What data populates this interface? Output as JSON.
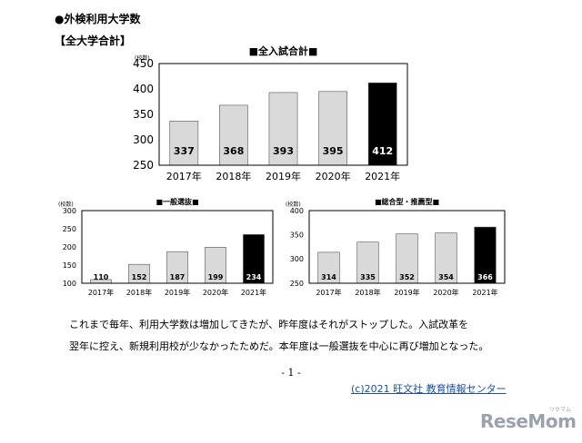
{
  "page": {
    "heading": "●外検利用大学数",
    "subheading": "【全大学合計】",
    "paragraph_line1": "これまで毎年、利用大学数は増加してきたが、昨年度はそれがストップした。入試改革を",
    "paragraph_line2": "翌年に控え、新規利用校が少なかったためだ。本年度は一般選抜を中心に再び増加となった。",
    "page_number": "- 1 -",
    "copyright": "(c)2021 旺文社 教育情報センター",
    "logo_text": "ReseMom",
    "logo_small": "リセマム"
  },
  "chart_data": [
    {
      "type": "bar",
      "title": "■全入試合計■",
      "unit_label": "(校数)",
      "categories": [
        "2017年",
        "2018年",
        "2019年",
        "2020年",
        "2021年"
      ],
      "values": [
        337,
        368,
        393,
        395,
        412
      ],
      "ylim": [
        250,
        450
      ],
      "yticks": [
        250,
        300,
        350,
        400,
        450
      ],
      "bar_colors": [
        "#d9d9d9",
        "#d9d9d9",
        "#d9d9d9",
        "#d9d9d9",
        "#000000"
      ],
      "grid": false
    },
    {
      "type": "bar",
      "title": "■一般選抜■",
      "unit_label": "(校数)",
      "categories": [
        "2017年",
        "2018年",
        "2019年",
        "2020年",
        "2021年"
      ],
      "values": [
        110,
        152,
        187,
        199,
        234
      ],
      "ylim": [
        100,
        300
      ],
      "yticks": [
        100,
        150,
        200,
        250,
        300
      ],
      "bar_colors": [
        "#d9d9d9",
        "#d9d9d9",
        "#d9d9d9",
        "#d9d9d9",
        "#000000"
      ],
      "grid": false
    },
    {
      "type": "bar",
      "title": "■総合型・推薦型■",
      "unit_label": "(校数)",
      "categories": [
        "2017年",
        "2018年",
        "2019年",
        "2020年",
        "2021年"
      ],
      "values": [
        314,
        335,
        352,
        354,
        366
      ],
      "ylim": [
        250,
        400
      ],
      "yticks": [
        250,
        300,
        350,
        400
      ],
      "bar_colors": [
        "#d9d9d9",
        "#d9d9d9",
        "#d9d9d9",
        "#d9d9d9",
        "#000000"
      ],
      "grid": false
    }
  ]
}
